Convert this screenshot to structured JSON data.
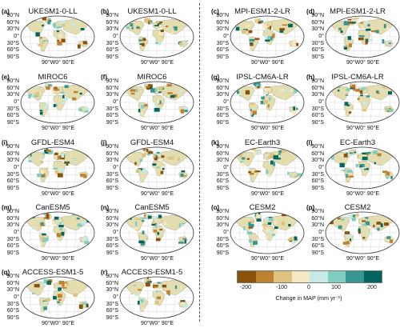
{
  "panels": [
    {
      "label": "(a)",
      "model": "UKESM1-0-LL",
      "lat_ticks": [
        "90°N",
        "60°N",
        "30°N",
        "0°",
        "30°S",
        "60°S",
        "90°S"
      ],
      "lon_ticks": "90°W0° 90°E"
    },
    {
      "label": "(b)",
      "model": "UKESM1-0-LL",
      "lat_ticks": [
        "90°N",
        "60°N",
        "30°N",
        "0°",
        "30°S",
        "60°S",
        "90°S"
      ],
      "lon_ticks": "90°W0° 90°E"
    },
    {
      "label": "(c)",
      "model": "MPI-ESM1-2-LR",
      "lat_ticks": [
        "90°N",
        "60°N",
        "30°N",
        "0°",
        "30°S",
        "60°S",
        "90°S"
      ],
      "lon_ticks": "90°W0° 90°E"
    },
    {
      "label": "(d)",
      "model": "MPI-ESM1-2-LR",
      "lat_ticks": [
        "90°N",
        "60°N",
        "30°N",
        "0°",
        "30°S",
        "60°S",
        "90°S"
      ],
      "lon_ticks": "90°W0° 90°E"
    },
    {
      "label": "(e)",
      "model": "MIROC6",
      "lat_ticks": [
        "90°N",
        "60°N",
        "30°N",
        "0°",
        "30°S",
        "60°S",
        "90°S"
      ],
      "lon_ticks": "90°W0° 90°E"
    },
    {
      "label": "(f)",
      "model": "MIROC6",
      "lat_ticks": [
        "90°N",
        "60°N",
        "30°N",
        "0°",
        "30°S",
        "60°S",
        "90°S"
      ],
      "lon_ticks": "90°W0° 90°E"
    },
    {
      "label": "(g)",
      "model": "IPSL-CM6A-LR",
      "lat_ticks": [
        "90°N",
        "60°N",
        "30°N",
        "0°",
        "30°S",
        "60°S",
        "90°S"
      ],
      "lon_ticks": "90°W0° 90°E"
    },
    {
      "label": "(h)",
      "model": "IPSL-CM6A-LR",
      "lat_ticks": [
        "90°N",
        "60°N",
        "30°N",
        "0°",
        "30°S",
        "60°S",
        "90°S"
      ],
      "lon_ticks": "90°W0° 90°E"
    },
    {
      "label": "(i)",
      "model": "GFDL-ESM4",
      "lat_ticks": [
        "90°N",
        "60°N",
        "30°N",
        "0°",
        "30°S",
        "60°S",
        "90°S"
      ],
      "lon_ticks": "90°W0° 90°E"
    },
    {
      "label": "(j)",
      "model": "GFDL-ESM4",
      "lat_ticks": [
        "90°N",
        "60°N",
        "30°N",
        "0°",
        "30°S",
        "60°S",
        "90°S"
      ],
      "lon_ticks": "90°W0° 90°E"
    },
    {
      "label": "(k)",
      "model": "EC-Earth3",
      "lat_ticks": [
        "90°N",
        "60°N",
        "30°N",
        "0°",
        "30°S",
        "60°S",
        "90°S"
      ],
      "lon_ticks": "90°W0° 90°E"
    },
    {
      "label": "(l)",
      "model": "EC-Earth3",
      "lat_ticks": [
        "90°N",
        "60°N",
        "30°N",
        "0°",
        "30°S",
        "60°S",
        "90°S"
      ],
      "lon_ticks": "90°W0° 90°E"
    },
    {
      "label": "(m)",
      "model": "CanESM5",
      "lat_ticks": [
        "90°N",
        "60°N",
        "30°N",
        "0°",
        "30°S",
        "60°S",
        "90°S"
      ],
      "lon_ticks": "90°W0° 90°E"
    },
    {
      "label": "(n)",
      "model": "CanESM5",
      "lat_ticks": [
        "90°N",
        "60°N",
        "30°N",
        "0°",
        "30°S",
        "60°S",
        "90°S"
      ],
      "lon_ticks": "90°W0° 90°E"
    },
    {
      "label": "(o)",
      "model": "CESM2",
      "lat_ticks": [
        "90°N",
        "60°N",
        "30°N",
        "0°",
        "30°S",
        "60°S",
        "90°S"
      ],
      "lon_ticks": "90°W0° 90°E"
    },
    {
      "label": "(p)",
      "model": "CESM2",
      "lat_ticks": [
        "90°N",
        "60°N",
        "30°N",
        "0°",
        "30°S",
        "60°S",
        "90°S"
      ],
      "lon_ticks": "90°W0° 90°E"
    },
    {
      "label": "(q)",
      "model": "ACCESS-ESM1-5",
      "lat_ticks": [
        "90°N",
        "60°N",
        "30°N",
        "0°",
        "30°S",
        "60°S",
        "90°S"
      ],
      "lon_ticks": "90°W0° 90°E"
    },
    {
      "label": "(r)",
      "model": "ACCESS-ESM1-5",
      "lat_ticks": [
        "90°N",
        "60°N",
        "30°N",
        "0°",
        "30°S",
        "60°S",
        "90°S"
      ],
      "lon_ticks": "90°W0° 90°E"
    }
  ],
  "legend": {
    "title": "Change in MAP (mm yr⁻¹)",
    "ticks": [
      "-200",
      "-100",
      "0",
      "100",
      "200"
    ],
    "colors": [
      "#8c510a",
      "#bf812d",
      "#dfc27d",
      "#f6e8c3",
      "#c7eae5",
      "#80cdc1",
      "#35978f",
      "#01665e"
    ]
  },
  "colors": {
    "land": "#e3ddb0",
    "ocean": "#ffffff",
    "grid": "#d2d2d2",
    "outline": "#333333",
    "dry": "#a6611a",
    "wet": "#018571"
  }
}
